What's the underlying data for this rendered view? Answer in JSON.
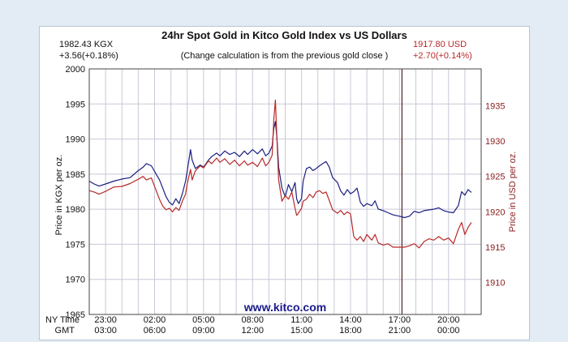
{
  "chart_data": {
    "type": "line",
    "title": "24hr Spot Gold in Kitco Gold Index vs US Dollars",
    "subtitle": "(Change calculation is from the previous gold close )",
    "left_header": {
      "price": "1982.43 KGX",
      "change": "+3.56(+0.18%)"
    },
    "right_header": {
      "price": "1917.80 USD",
      "change": "+2.70(+0.14%)"
    },
    "ylabel_left": "Price in KGX per oz.",
    "ylabel_right": "Price in USD per oz.",
    "ylim_left": [
      1965,
      2000
    ],
    "yticks_left": [
      1965,
      1970,
      1975,
      1980,
      1985,
      1990,
      1995,
      2000
    ],
    "ylim_right": [
      1905.5,
      1940.2
    ],
    "yticks_right": [
      1910,
      1915,
      1920,
      1925,
      1930,
      1935
    ],
    "xlim_hours": [
      0,
      24
    ],
    "x_row_labels": [
      "NY Time",
      "GMT"
    ],
    "xticks": [
      {
        "hour": 1,
        "ny": "23:00",
        "gmt": "03:00"
      },
      {
        "hour": 4,
        "ny": "02:00",
        "gmt": "06:00"
      },
      {
        "hour": 7,
        "ny": "05:00",
        "gmt": "09:00"
      },
      {
        "hour": 10,
        "ny": "08:00",
        "gmt": "12:00"
      },
      {
        "hour": 13,
        "ny": "11:00",
        "gmt": "15:00"
      },
      {
        "hour": 16,
        "ny": "14:00",
        "gmt": "18:00"
      },
      {
        "hour": 19,
        "ny": "17:00",
        "gmt": "21:00"
      },
      {
        "hour": 22,
        "ny": "20:00",
        "gmt": "00:00"
      }
    ],
    "close_marker_hour": 19.15,
    "watermark": "www.kitco.com",
    "series": [
      {
        "name": "KGX",
        "axis": "left",
        "color": "#1b1f80",
        "points": [
          [
            0.0,
            1984.0
          ],
          [
            0.3,
            1983.6
          ],
          [
            0.6,
            1983.3
          ],
          [
            1.0,
            1983.6
          ],
          [
            1.5,
            1984.0
          ],
          [
            2.0,
            1984.3
          ],
          [
            2.5,
            1984.5
          ],
          [
            3.0,
            1985.5
          ],
          [
            3.3,
            1986.0
          ],
          [
            3.5,
            1986.5
          ],
          [
            3.8,
            1986.2
          ],
          [
            4.1,
            1985.0
          ],
          [
            4.3,
            1984.2
          ],
          [
            4.5,
            1983.0
          ],
          [
            4.7,
            1981.8
          ],
          [
            4.9,
            1981.0
          ],
          [
            5.1,
            1980.6
          ],
          [
            5.3,
            1981.5
          ],
          [
            5.5,
            1980.8
          ],
          [
            5.7,
            1982.2
          ],
          [
            5.9,
            1984.0
          ],
          [
            6.0,
            1985.5
          ],
          [
            6.2,
            1988.5
          ],
          [
            6.3,
            1987.0
          ],
          [
            6.5,
            1985.8
          ],
          [
            6.8,
            1986.3
          ],
          [
            7.0,
            1986.0
          ],
          [
            7.3,
            1987.0
          ],
          [
            7.5,
            1987.5
          ],
          [
            7.8,
            1988.0
          ],
          [
            8.0,
            1987.6
          ],
          [
            8.3,
            1988.3
          ],
          [
            8.6,
            1987.8
          ],
          [
            8.9,
            1988.1
          ],
          [
            9.2,
            1987.5
          ],
          [
            9.5,
            1988.3
          ],
          [
            9.7,
            1987.8
          ],
          [
            10.0,
            1988.5
          ],
          [
            10.3,
            1987.9
          ],
          [
            10.6,
            1988.6
          ],
          [
            10.8,
            1987.6
          ],
          [
            11.0,
            1988.0
          ],
          [
            11.2,
            1989.0
          ],
          [
            11.3,
            1991.5
          ],
          [
            11.4,
            1992.5
          ],
          [
            11.5,
            1990.0
          ],
          [
            11.6,
            1986.0
          ],
          [
            11.8,
            1983.0
          ],
          [
            12.0,
            1981.8
          ],
          [
            12.2,
            1983.5
          ],
          [
            12.4,
            1982.5
          ],
          [
            12.6,
            1983.8
          ],
          [
            12.7,
            1981.5
          ],
          [
            12.8,
            1980.8
          ],
          [
            13.0,
            1981.5
          ],
          [
            13.1,
            1984.0
          ],
          [
            13.3,
            1985.8
          ],
          [
            13.5,
            1986.0
          ],
          [
            13.7,
            1985.5
          ],
          [
            13.9,
            1985.8
          ],
          [
            14.1,
            1986.2
          ],
          [
            14.3,
            1986.5
          ],
          [
            14.5,
            1986.8
          ],
          [
            14.7,
            1986.0
          ],
          [
            14.9,
            1984.5
          ],
          [
            15.2,
            1983.8
          ],
          [
            15.4,
            1982.6
          ],
          [
            15.6,
            1982.0
          ],
          [
            15.8,
            1982.8
          ],
          [
            16.0,
            1982.2
          ],
          [
            16.2,
            1982.5
          ],
          [
            16.4,
            1983.0
          ],
          [
            16.6,
            1981.0
          ],
          [
            16.8,
            1980.4
          ],
          [
            17.0,
            1980.8
          ],
          [
            17.3,
            1980.5
          ],
          [
            17.5,
            1981.2
          ],
          [
            17.7,
            1980.0
          ],
          [
            18.0,
            1979.8
          ],
          [
            18.3,
            1979.5
          ],
          [
            18.6,
            1979.2
          ],
          [
            19.0,
            1979.0
          ],
          [
            19.3,
            1978.8
          ],
          [
            19.6,
            1979.0
          ],
          [
            19.9,
            1979.7
          ],
          [
            20.2,
            1979.5
          ],
          [
            20.5,
            1979.8
          ],
          [
            20.8,
            1979.9
          ],
          [
            21.1,
            1980.0
          ],
          [
            21.4,
            1980.2
          ],
          [
            21.7,
            1979.8
          ],
          [
            22.0,
            1979.6
          ],
          [
            22.3,
            1979.5
          ],
          [
            22.6,
            1980.5
          ],
          [
            22.8,
            1982.5
          ],
          [
            23.0,
            1982.0
          ],
          [
            23.2,
            1982.8
          ],
          [
            23.4,
            1982.4
          ]
        ]
      },
      {
        "name": "USD",
        "axis": "right",
        "color": "#b82a28",
        "points": [
          [
            0.0,
            1923.0
          ],
          [
            0.3,
            1922.8
          ],
          [
            0.6,
            1922.5
          ],
          [
            1.0,
            1922.9
          ],
          [
            1.5,
            1923.5
          ],
          [
            2.0,
            1923.6
          ],
          [
            2.5,
            1924.0
          ],
          [
            3.0,
            1924.6
          ],
          [
            3.3,
            1925.0
          ],
          [
            3.5,
            1924.5
          ],
          [
            3.8,
            1924.8
          ],
          [
            4.1,
            1923.0
          ],
          [
            4.3,
            1921.8
          ],
          [
            4.5,
            1920.8
          ],
          [
            4.7,
            1920.3
          ],
          [
            4.9,
            1920.5
          ],
          [
            5.1,
            1920.0
          ],
          [
            5.3,
            1920.6
          ],
          [
            5.5,
            1920.2
          ],
          [
            5.7,
            1921.5
          ],
          [
            5.9,
            1922.5
          ],
          [
            6.0,
            1924.0
          ],
          [
            6.2,
            1926.0
          ],
          [
            6.3,
            1924.5
          ],
          [
            6.5,
            1925.8
          ],
          [
            6.8,
            1926.5
          ],
          [
            7.0,
            1926.2
          ],
          [
            7.3,
            1927.2
          ],
          [
            7.5,
            1926.8
          ],
          [
            7.8,
            1927.6
          ],
          [
            8.0,
            1927.0
          ],
          [
            8.3,
            1927.5
          ],
          [
            8.6,
            1926.7
          ],
          [
            8.9,
            1927.3
          ],
          [
            9.2,
            1926.5
          ],
          [
            9.5,
            1927.2
          ],
          [
            9.7,
            1926.6
          ],
          [
            10.0,
            1927.0
          ],
          [
            10.3,
            1926.4
          ],
          [
            10.6,
            1927.6
          ],
          [
            10.8,
            1926.5
          ],
          [
            11.0,
            1927.0
          ],
          [
            11.2,
            1928.0
          ],
          [
            11.3,
            1933.0
          ],
          [
            11.4,
            1935.8
          ],
          [
            11.5,
            1930.0
          ],
          [
            11.6,
            1924.5
          ],
          [
            11.8,
            1921.5
          ],
          [
            12.0,
            1922.3
          ],
          [
            12.2,
            1921.8
          ],
          [
            12.4,
            1922.8
          ],
          [
            12.6,
            1920.5
          ],
          [
            12.7,
            1919.5
          ],
          [
            12.8,
            1919.8
          ],
          [
            13.0,
            1920.5
          ],
          [
            13.1,
            1921.5
          ],
          [
            13.3,
            1921.8
          ],
          [
            13.5,
            1922.5
          ],
          [
            13.7,
            1922.0
          ],
          [
            13.9,
            1922.8
          ],
          [
            14.1,
            1923.0
          ],
          [
            14.3,
            1922.6
          ],
          [
            14.5,
            1922.8
          ],
          [
            14.7,
            1921.6
          ],
          [
            14.9,
            1920.3
          ],
          [
            15.2,
            1919.8
          ],
          [
            15.4,
            1920.2
          ],
          [
            15.6,
            1919.6
          ],
          [
            15.8,
            1920.0
          ],
          [
            16.0,
            1919.7
          ],
          [
            16.2,
            1916.5
          ],
          [
            16.4,
            1916.0
          ],
          [
            16.6,
            1916.5
          ],
          [
            16.8,
            1915.8
          ],
          [
            17.0,
            1916.8
          ],
          [
            17.3,
            1916.0
          ],
          [
            17.5,
            1916.8
          ],
          [
            17.7,
            1915.6
          ],
          [
            18.0,
            1915.3
          ],
          [
            18.3,
            1915.5
          ],
          [
            18.6,
            1915.0
          ],
          [
            19.0,
            1915.0
          ],
          [
            19.3,
            1915.0
          ],
          [
            19.6,
            1915.2
          ],
          [
            19.9,
            1915.5
          ],
          [
            20.2,
            1914.9
          ],
          [
            20.5,
            1915.8
          ],
          [
            20.8,
            1916.2
          ],
          [
            21.1,
            1916.0
          ],
          [
            21.4,
            1916.5
          ],
          [
            21.7,
            1916.0
          ],
          [
            22.0,
            1916.3
          ],
          [
            22.3,
            1915.5
          ],
          [
            22.6,
            1917.5
          ],
          [
            22.8,
            1918.5
          ],
          [
            23.0,
            1916.8
          ],
          [
            23.2,
            1917.8
          ],
          [
            23.4,
            1918.5
          ]
        ]
      }
    ]
  }
}
